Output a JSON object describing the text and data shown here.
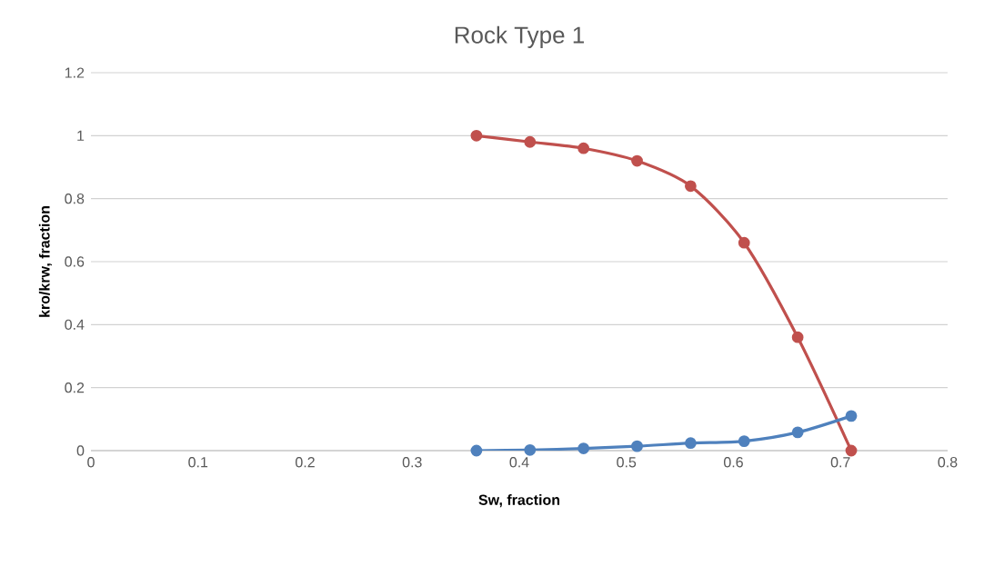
{
  "chart_data": {
    "type": "line",
    "title": "Rock Type 1",
    "xlabel": "Sw, fraction",
    "ylabel": "kro/krw, fraction",
    "x": [
      0.36,
      0.41,
      0.46,
      0.51,
      0.56,
      0.61,
      0.66,
      0.71
    ],
    "series": [
      {
        "color": "#c0504d",
        "values": [
          1.0,
          0.98,
          0.96,
          0.92,
          0.84,
          0.66,
          0.36,
          0.0
        ]
      },
      {
        "color": "#4f81bd",
        "values": [
          0.0,
          0.002,
          0.007,
          0.014,
          0.024,
          0.03,
          0.058,
          0.11
        ]
      }
    ],
    "xlim": [
      0,
      0.8
    ],
    "ylim": [
      0,
      1.2
    ],
    "xticks": [
      0,
      0.1,
      0.2,
      0.3,
      0.4,
      0.5,
      0.6,
      0.7,
      0.8
    ],
    "yticks": [
      0,
      0.2,
      0.4,
      0.6,
      0.8,
      1,
      1.2
    ],
    "grid": "y",
    "marker": "circle",
    "line_style": "solid"
  }
}
